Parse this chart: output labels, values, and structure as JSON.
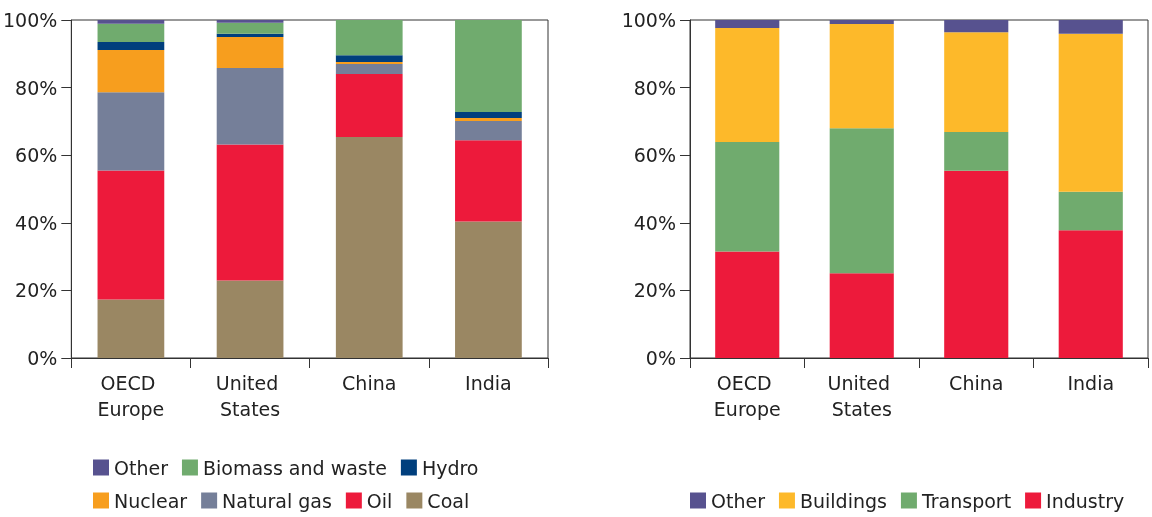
{
  "chart_data": [
    {
      "type": "bar",
      "stacked": true,
      "categories": [
        "OECD Europe",
        "United States",
        "China",
        "India"
      ],
      "series": [
        {
          "name": "Coal",
          "color": "#9a8763",
          "values": [
            17.3,
            22.9,
            65.4,
            40.4
          ]
        },
        {
          "name": "Oil",
          "color": "#ed1a3b",
          "values": [
            38.2,
            40.3,
            18.6,
            24.0
          ]
        },
        {
          "name": "Natural gas",
          "color": "#757f99",
          "values": [
            23.1,
            22.6,
            3.0,
            5.7
          ]
        },
        {
          "name": "Nuclear",
          "color": "#f79e1e",
          "values": [
            12.5,
            9.2,
            0.6,
            0.9
          ]
        },
        {
          "name": "Hydro",
          "color": "#003f7d",
          "values": [
            2.4,
            0.9,
            2.0,
            1.8
          ]
        },
        {
          "name": "Biomass and waste",
          "color": "#70ab6e",
          "values": [
            5.4,
            3.3,
            10.4,
            27.2
          ]
        },
        {
          "name": "Other",
          "color": "#57528f",
          "values": [
            1.1,
            0.8,
            0,
            0
          ]
        }
      ],
      "ylim": [
        0,
        100
      ],
      "yticks": [
        {
          "value": 0,
          "label": "0%"
        },
        {
          "value": 20,
          "label": "20%"
        },
        {
          "value": 40,
          "label": "40%"
        },
        {
          "value": 60,
          "label": "60%"
        },
        {
          "value": 80,
          "label": "80%"
        },
        {
          "value": 100,
          "label": "100%"
        }
      ],
      "grid": false,
      "legend": "bottom"
    },
    {
      "type": "bar",
      "stacked": true,
      "categories": [
        "OECD Europe",
        "United States",
        "China",
        "India"
      ],
      "series": [
        {
          "name": "Industry",
          "color": "#ed1a3b",
          "values": [
            31.5,
            25.1,
            55.4,
            37.8
          ]
        },
        {
          "name": "Transport",
          "color": "#70ab6e",
          "values": [
            32.4,
            42.9,
            11.5,
            11.4
          ]
        },
        {
          "name": "Buildings",
          "color": "#fdb92a",
          "values": [
            33.7,
            30.8,
            29.5,
            46.7
          ]
        },
        {
          "name": "Other",
          "color": "#57528f",
          "values": [
            2.4,
            1.2,
            3.6,
            4.1
          ]
        }
      ],
      "ylim": [
        0,
        100
      ],
      "yticks": [
        {
          "value": 0,
          "label": "0%"
        },
        {
          "value": 20,
          "label": "20%"
        },
        {
          "value": 40,
          "label": "40%"
        },
        {
          "value": 60,
          "label": "60%"
        },
        {
          "value": 80,
          "label": "80%"
        },
        {
          "value": 100,
          "label": "100%"
        }
      ],
      "grid": false,
      "legend": "bottom"
    }
  ]
}
